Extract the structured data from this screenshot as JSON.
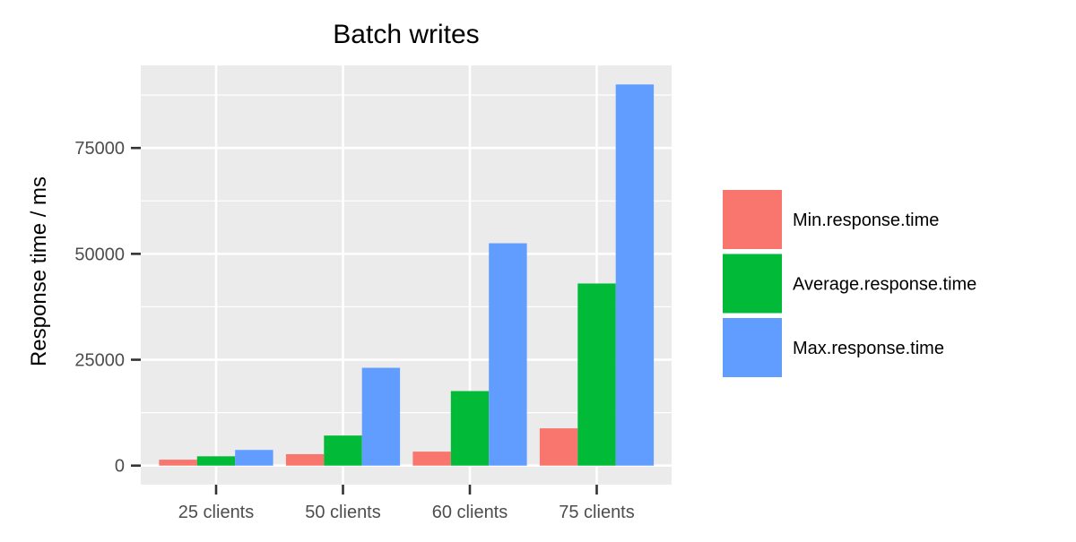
{
  "chart_data": {
    "type": "bar",
    "title": "Batch writes",
    "xlabel": "",
    "ylabel": "Response time / ms",
    "categories": [
      "25 clients",
      "50 clients",
      "60 clients",
      "75 clients"
    ],
    "series": [
      {
        "name": "Min.response.time",
        "color": "#F8766D",
        "values": [
          1400,
          2700,
          3300,
          8800
        ]
      },
      {
        "name": "Average.response.time",
        "color": "#00BA38",
        "values": [
          2200,
          7100,
          17600,
          43000
        ]
      },
      {
        "name": "Max.response.time",
        "color": "#619CFF",
        "values": [
          3700,
          23100,
          52500,
          90000
        ]
      }
    ],
    "ylim": [
      -4500,
      94500
    ],
    "yticks": [
      0,
      25000,
      50000,
      75000
    ],
    "ytick_labels": [
      "0",
      "25000",
      "50000",
      "75000"
    ],
    "grid": true,
    "panel_background": "#EBEBEB",
    "legend_position": "right"
  }
}
